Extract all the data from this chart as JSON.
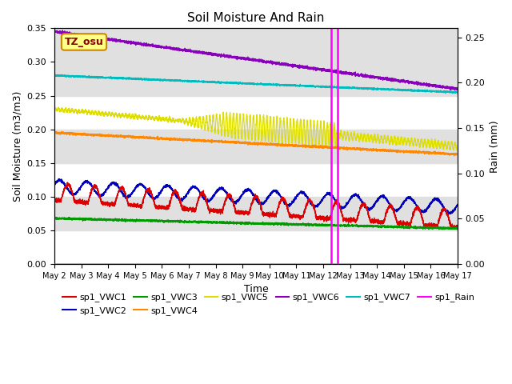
{
  "title": "Soil Moisture And Rain",
  "xlabel": "Time",
  "ylabel_left": "Soil Moisture (m3/m3)",
  "ylabel_right": "Rain (mm)",
  "ylim_left": [
    0.0,
    0.35
  ],
  "ylim_right": [
    0.0,
    0.26
  ],
  "xtick_labels": [
    "May 2",
    "May 3",
    "May 4",
    "May 5",
    "May 6",
    "May 7",
    "May 8",
    "May 9",
    "May 10",
    "May 11",
    "May 12",
    "May 13",
    "May 14",
    "May 15",
    "May 16",
    "May 17"
  ],
  "vline1": 10.3,
  "vline2": 10.55,
  "annotation_label": "TZ_osu",
  "background_color": "#ffffff",
  "band_color": "#e0e0e0",
  "legend_entries": [
    {
      "label": "sp1_VWC1",
      "color": "#dd0000"
    },
    {
      "label": "sp1_VWC2",
      "color": "#0000bb"
    },
    {
      "label": "sp1_VWC3",
      "color": "#009900"
    },
    {
      "label": "sp1_VWC4",
      "color": "#ff8800"
    },
    {
      "label": "sp1_VWC5",
      "color": "#dddd00"
    },
    {
      "label": "sp1_VWC6",
      "color": "#8800bb"
    },
    {
      "label": "sp1_VWC7",
      "color": "#00bbbb"
    },
    {
      "label": "sp1_Rain",
      "color": "#ff00ff"
    }
  ]
}
